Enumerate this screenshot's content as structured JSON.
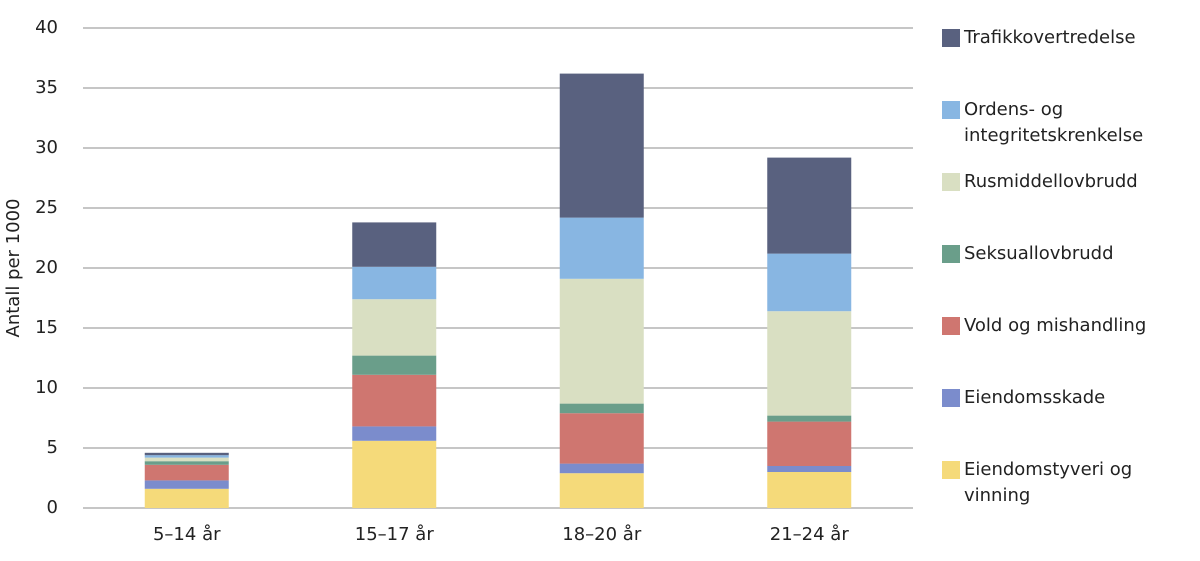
{
  "chart_data": {
    "type": "stacked-bar",
    "y_label": "Antall per 1000",
    "categories": [
      "5–14 år",
      "15–17 år",
      "18–20 år",
      "21–24 år"
    ],
    "ylim": [
      0,
      40
    ],
    "yticks": [
      0,
      5,
      10,
      15,
      20,
      25,
      30,
      35,
      40
    ],
    "grid": true,
    "legend": "right",
    "series": [
      {
        "name": "Eiendomstyveri og vinning",
        "color": "#f5da7a",
        "values": [
          1.6,
          5.6,
          2.9,
          3.0
        ]
      },
      {
        "name": "Eiendomsskade",
        "color": "#7b8ccc",
        "values": [
          0.7,
          1.2,
          0.8,
          0.5
        ]
      },
      {
        "name": "Vold og mishandling",
        "color": "#cf7670",
        "values": [
          1.3,
          4.3,
          4.2,
          3.7
        ]
      },
      {
        "name": "Seksuallovbrudd",
        "color": "#6a9e8a",
        "values": [
          0.3,
          1.6,
          0.8,
          0.5
        ]
      },
      {
        "name": "Rusmiddellovbrudd",
        "color": "#d9dfc2",
        "values": [
          0.3,
          4.7,
          10.4,
          8.7
        ]
      },
      {
        "name": "Ordens- og integritetskrenkelse",
        "color": "#88b6e2",
        "values": [
          0.2,
          2.7,
          5.1,
          4.8
        ]
      },
      {
        "name": "Trafikkovertredelse",
        "color": "#59617f",
        "values": [
          0.2,
          3.7,
          12.0,
          8.0
        ]
      }
    ]
  }
}
